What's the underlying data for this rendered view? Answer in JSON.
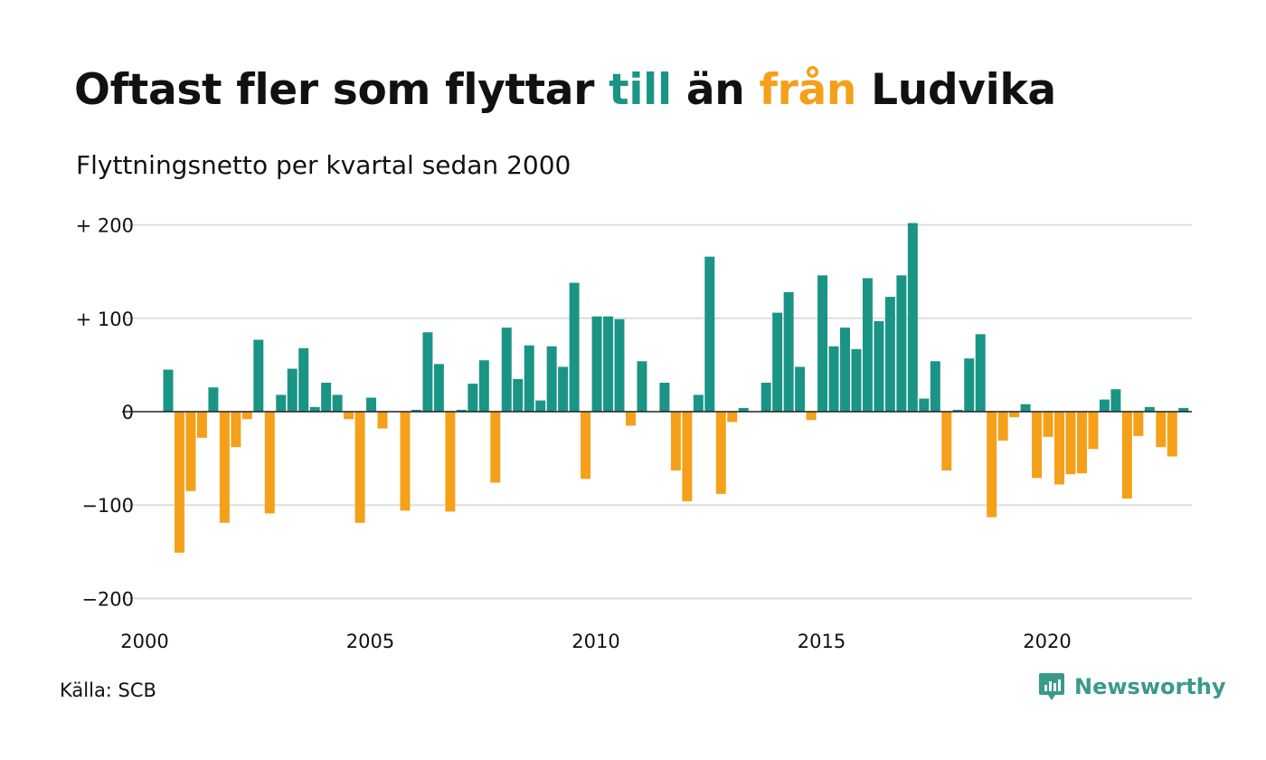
{
  "title": {
    "part1": "Oftast fler som flyttar ",
    "part2": "till",
    "part3": " än ",
    "part4": "från",
    "part5": " Ludvika"
  },
  "subtitle": "Flyttningsnetto per kvartal sedan 2000",
  "source": "Källa: SCB",
  "brand": {
    "name": "Newsworthy",
    "icon": "newsworthy-logo-icon"
  },
  "colors": {
    "positive": "#1a9485",
    "negative": "#f5a01a",
    "grid": "#dddddd",
    "brand": "#3a9a8a"
  },
  "chart_data": {
    "type": "bar",
    "title": "Oftast fler som flyttar till än från Ludvika",
    "subtitle": "Flyttningsnetto per kvartal sedan 2000",
    "xlabel": "",
    "ylabel": "",
    "ylim": [
      -200,
      200
    ],
    "yticks": [
      {
        "value": 200,
        "label": "+ 200"
      },
      {
        "value": 100,
        "label": "+ 100"
      },
      {
        "value": 0,
        "label": "0"
      },
      {
        "value": -100,
        "label": "−100"
      },
      {
        "value": -200,
        "label": "−200"
      }
    ],
    "xticks": [
      {
        "year": 2000,
        "label": "2000"
      },
      {
        "year": 2005,
        "label": "2005"
      },
      {
        "year": 2010,
        "label": "2010"
      },
      {
        "year": 2015,
        "label": "2015"
      },
      {
        "year": 2020,
        "label": "2020"
      }
    ],
    "start": "2000 Q1",
    "grid": true,
    "legend": "none",
    "values": [
      45,
      -151,
      -85,
      -28,
      26,
      -119,
      -38,
      -8,
      77,
      -109,
      18,
      46,
      68,
      5,
      31,
      18,
      -8,
      -119,
      15,
      -18,
      0,
      -106,
      2,
      85,
      51,
      -107,
      2,
      30,
      55,
      -76,
      90,
      35,
      71,
      12,
      70,
      48,
      138,
      -72,
      102,
      102,
      99,
      -15,
      54,
      0,
      31,
      -63,
      -96,
      18,
      166,
      -88,
      -11,
      4,
      0,
      31,
      106,
      128,
      48,
      -9,
      146,
      70,
      90,
      67,
      143,
      97,
      123,
      146,
      202,
      14,
      54,
      -63,
      2,
      57,
      83,
      -113,
      -31,
      -6,
      8,
      -71,
      -27,
      -78,
      -67,
      -66,
      -40,
      13,
      24,
      -93,
      -26,
      5,
      -38,
      -48,
      4
    ]
  }
}
